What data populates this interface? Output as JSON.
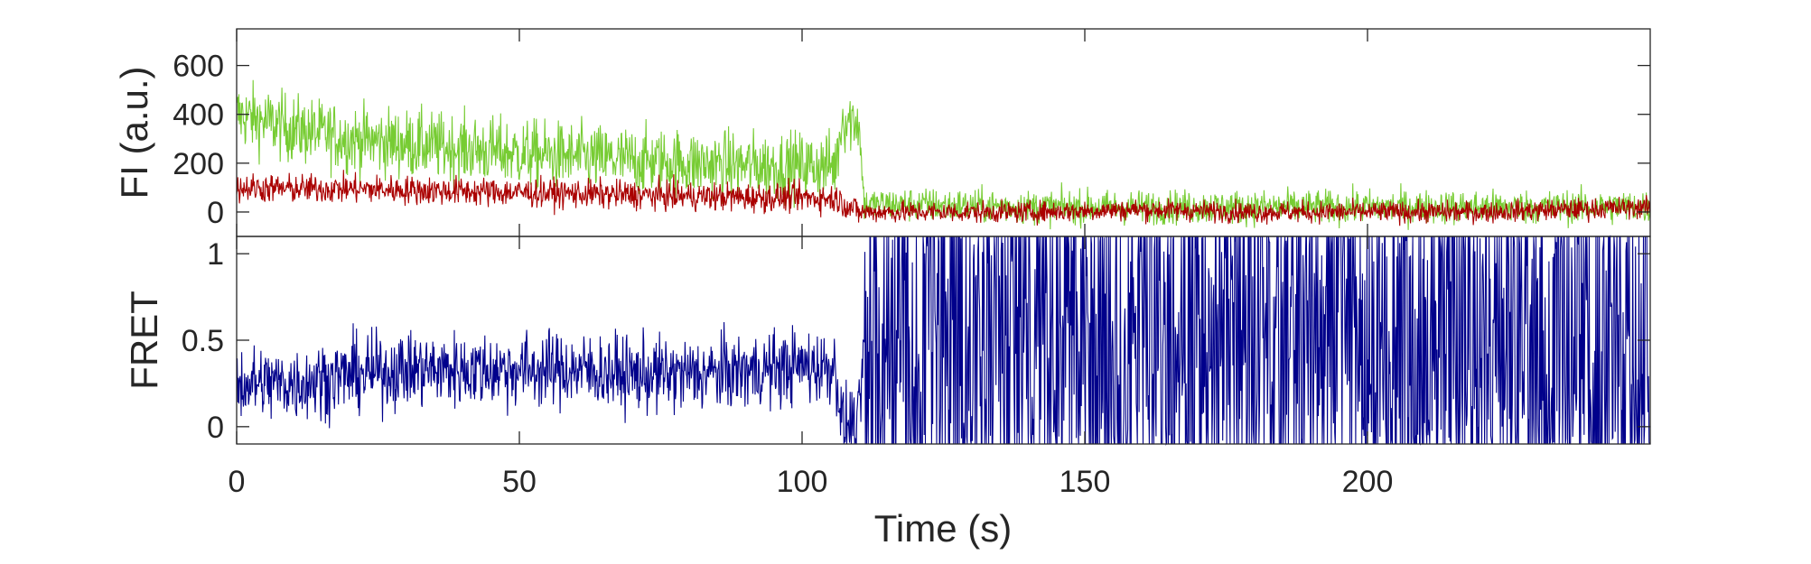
{
  "chart_data": [
    {
      "type": "line",
      "ylabel": "FI (a.u.)",
      "ylim": [
        -100,
        750
      ],
      "yticks": [
        0,
        200,
        400,
        600
      ],
      "ytick_labels": [
        "0",
        "200",
        "400",
        "600"
      ],
      "xlim": [
        0,
        250
      ],
      "grid": false,
      "colors": {
        "donor": "#77cc33",
        "acceptor": "#aa0000"
      },
      "series": [
        {
          "x": [
            0,
            10,
            20,
            30,
            40,
            50,
            60,
            70,
            80,
            90,
            100,
            106,
            107,
            110,
            111,
            120,
            140,
            160,
            180,
            200,
            220,
            250
          ],
          "values": [
            400,
            340,
            300,
            280,
            260,
            240,
            225,
            210,
            200,
            190,
            190,
            190,
            380,
            380,
            30,
            30,
            20,
            20,
            20,
            20,
            20,
            20
          ]
        },
        {
          "x": [
            0,
            10,
            20,
            30,
            40,
            50,
            60,
            70,
            80,
            90,
            100,
            106,
            110,
            120,
            140,
            160,
            180,
            200,
            220,
            250
          ],
          "values": [
            100,
            95,
            95,
            90,
            85,
            80,
            75,
            70,
            65,
            60,
            60,
            55,
            0,
            0,
            0,
            10,
            0,
            0,
            0,
            20
          ]
        }
      ]
    },
    {
      "type": "line",
      "ylabel": "FRET",
      "xlabel": "Time (s)",
      "xlim": [
        0,
        250
      ],
      "xticks": [
        0,
        50,
        100,
        150,
        200
      ],
      "xtick_labels": [
        "0",
        "50",
        "100",
        "150",
        "200"
      ],
      "ylim": [
        -0.1,
        1.1
      ],
      "yticks": [
        0,
        0.5,
        1
      ],
      "ytick_labels": [
        "0",
        "0.5",
        "1"
      ],
      "grid": false,
      "colors": {
        "fret": "#00008b"
      },
      "series": [
        {
          "x": [
            0,
            10,
            20,
            30,
            40,
            50,
            60,
            70,
            80,
            90,
            100,
            106,
            107,
            110,
            111,
            250
          ],
          "values": [
            0.25,
            0.25,
            0.3,
            0.33,
            0.33,
            0.33,
            0.33,
            0.3,
            0.3,
            0.32,
            0.35,
            0.35,
            0.02,
            0.0,
            0.5,
            0.5
          ]
        }
      ]
    }
  ]
}
